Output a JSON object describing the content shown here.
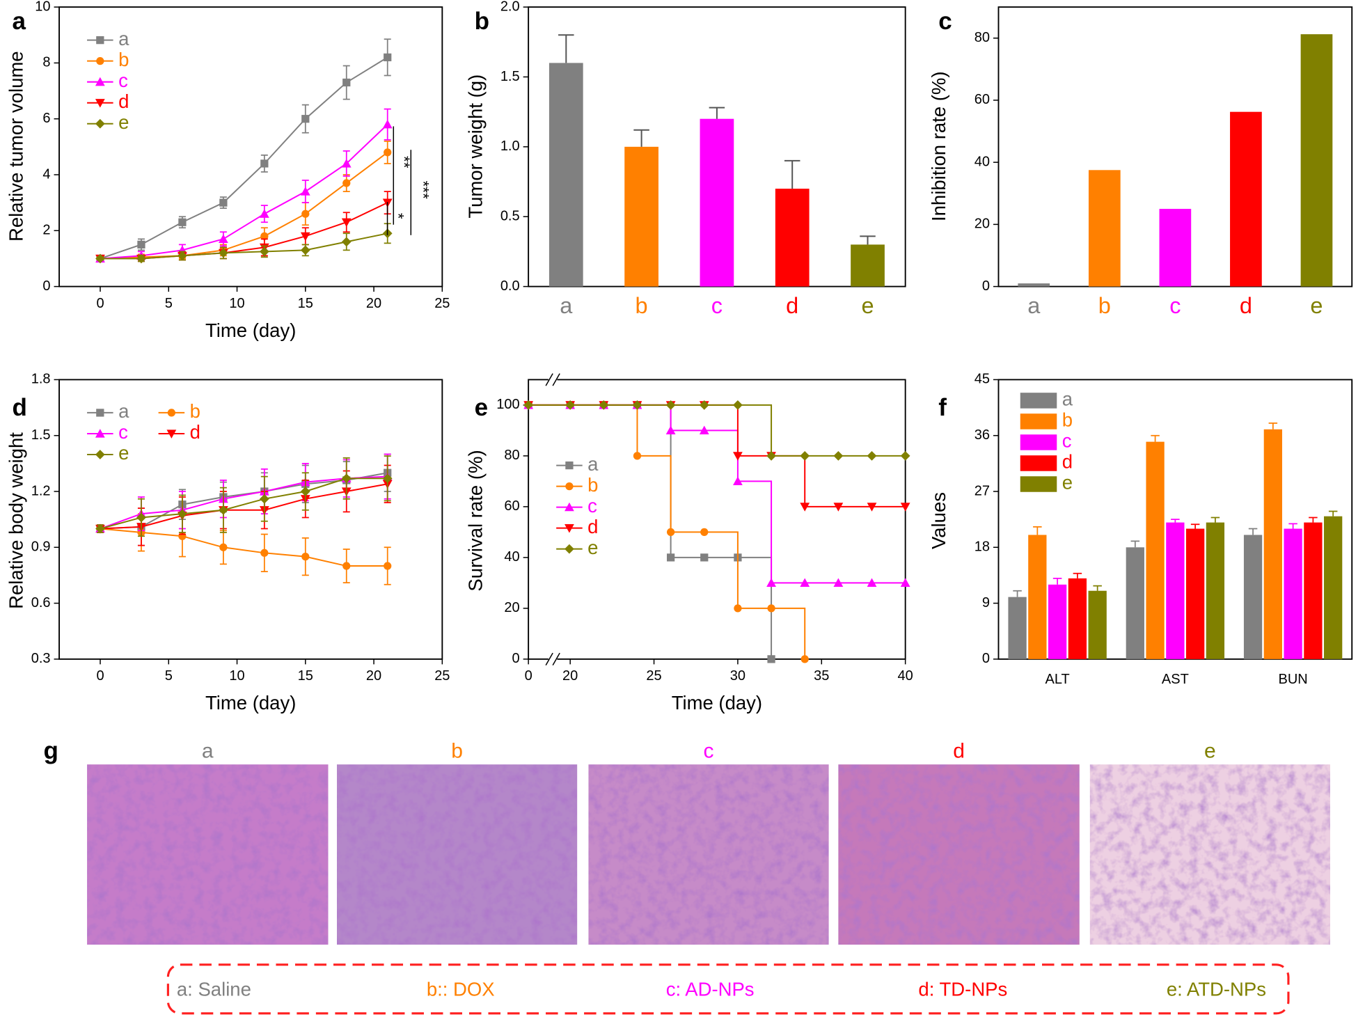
{
  "chart_data": [
    {
      "type": "line",
      "panel_label": "a",
      "x_label": "Time (day)",
      "y_label": "Relative tumor volume",
      "x": [
        0,
        3,
        6,
        9,
        12,
        15,
        18,
        21
      ],
      "xlim": [
        -3,
        25
      ],
      "xticks": [
        0,
        5,
        10,
        15,
        20,
        25
      ],
      "ylim": [
        0,
        10
      ],
      "yticks": [
        0,
        2,
        4,
        6,
        8,
        10
      ],
      "legend": "upper left",
      "series": [
        {
          "name": "a",
          "color": "#808080",
          "marker": "square",
          "values": [
            1,
            1.5,
            2.3,
            3,
            4.4,
            6,
            7.3,
            8.2
          ],
          "errors": [
            0.05,
            0.2,
            0.2,
            0.2,
            0.3,
            0.5,
            0.6,
            0.65
          ]
        },
        {
          "name": "b",
          "color": "#ff8000",
          "marker": "circle",
          "values": [
            1,
            1.05,
            1.1,
            1.3,
            1.8,
            2.6,
            3.7,
            4.8
          ],
          "errors": [
            0.05,
            0.1,
            0.1,
            0.2,
            0.3,
            0.4,
            0.3,
            0.4
          ]
        },
        {
          "name": "c",
          "color": "#ff00ff",
          "marker": "triangle-up",
          "values": [
            1,
            1.1,
            1.3,
            1.7,
            2.6,
            3.4,
            4.4,
            5.8
          ],
          "errors": [
            0.05,
            0.15,
            0.2,
            0.25,
            0.3,
            0.4,
            0.45,
            0.55
          ]
        },
        {
          "name": "d",
          "color": "#ff0000",
          "marker": "triangle-down",
          "values": [
            1,
            1,
            1.1,
            1.2,
            1.4,
            1.8,
            2.3,
            3
          ],
          "errors": [
            0.05,
            0.1,
            0.15,
            0.2,
            0.3,
            0.3,
            0.35,
            0.4
          ]
        },
        {
          "name": "e",
          "color": "#808000",
          "marker": "diamond",
          "values": [
            1,
            1,
            1.1,
            1.2,
            1.25,
            1.3,
            1.6,
            1.9
          ],
          "errors": [
            0.05,
            0.1,
            0.15,
            0.2,
            0.2,
            0.2,
            0.3,
            0.35
          ]
        }
      ],
      "annotations": [
        "**",
        "***",
        "*"
      ]
    },
    {
      "type": "bar",
      "panel_label": "b",
      "y_label": "Tumor weight (g)",
      "categories": [
        "a",
        "b",
        "c",
        "d",
        "e"
      ],
      "values": [
        1.6,
        1,
        1.2,
        0.7,
        0.3
      ],
      "errors": [
        0.2,
        0.12,
        0.08,
        0.2,
        0.06
      ],
      "colors": [
        "#808080",
        "#ff8000",
        "#ff00ff",
        "#ff0000",
        "#808000"
      ],
      "ylim": [
        0,
        2
      ],
      "yticks": [
        {
          "value": 0,
          "label": "0.0"
        },
        0.5,
        {
          "value": 1,
          "label": "1.0"
        },
        1.5,
        {
          "value": 2,
          "label": "2.0"
        }
      ]
    },
    {
      "type": "bar",
      "panel_label": "c",
      "y_label": "Inhibition rate (%)",
      "categories": [
        "a",
        "b",
        "c",
        "d",
        "e"
      ],
      "values": [
        1,
        37.5,
        25,
        56.25,
        81.25
      ],
      "colors": [
        "#808080",
        "#ff8000",
        "#ff00ff",
        "#ff0000",
        "#808000"
      ],
      "ylim": [
        0,
        90
      ],
      "yticks": [
        0,
        20,
        40,
        60,
        80
      ]
    },
    {
      "type": "line",
      "panel_label": "d",
      "x_label": "Time (day)",
      "y_label": "Relative body weight",
      "x": [
        0,
        3,
        6,
        9,
        12,
        15,
        18,
        21
      ],
      "xlim": [
        -3,
        25
      ],
      "xticks": [
        0,
        5,
        10,
        15,
        20,
        25
      ],
      "ylim": [
        0.3,
        1.8
      ],
      "yticks": [
        0.3,
        0.6,
        0.9,
        1.2,
        1.5,
        1.8
      ],
      "legend": "upper left",
      "legend_columns": 2,
      "series": [
        {
          "name": "a",
          "color": "#808080",
          "marker": "square",
          "values": [
            1,
            1.01,
            1.13,
            1.17,
            1.2,
            1.24,
            1.26,
            1.3
          ],
          "errors": [
            0.02,
            0.1,
            0.08,
            0.08,
            0.1,
            0.1,
            0.1,
            0.1
          ]
        },
        {
          "name": "b",
          "color": "#ff8000",
          "marker": "circle",
          "values": [
            1,
            0.98,
            0.96,
            0.9,
            0.87,
            0.85,
            0.8,
            0.8
          ],
          "errors": [
            0.02,
            0.1,
            0.11,
            0.09,
            0.1,
            0.1,
            0.09,
            0.1
          ]
        },
        {
          "name": "c",
          "color": "#ff00ff",
          "marker": "triangle-up",
          "values": [
            1,
            1.08,
            1.1,
            1.16,
            1.2,
            1.25,
            1.27,
            1.28
          ],
          "errors": [
            0.02,
            0.09,
            0.1,
            0.1,
            0.12,
            0.1,
            0.1,
            0.12
          ]
        },
        {
          "name": "d",
          "color": "#ff0000",
          "marker": "triangle-down",
          "values": [
            1,
            1.01,
            1.07,
            1.1,
            1.1,
            1.16,
            1.2,
            1.24
          ],
          "errors": [
            0.02,
            0.1,
            0.1,
            0.1,
            0.1,
            0.1,
            0.11,
            0.1
          ]
        },
        {
          "name": "e",
          "color": "#808000",
          "marker": "diamond",
          "values": [
            1,
            1.06,
            1.08,
            1.1,
            1.16,
            1.2,
            1.27,
            1.27
          ],
          "errors": [
            0.02,
            0.1,
            0.1,
            0.12,
            0.12,
            0.1,
            0.11,
            0.12
          ]
        }
      ]
    },
    {
      "type": "step",
      "panel_label": "e",
      "x_label": "Time (day)",
      "y_label": "Survival rate (%)",
      "x": [
        0,
        20,
        22,
        24,
        26,
        28,
        30,
        32,
        34,
        36,
        38,
        40
      ],
      "xlim": [
        0,
        40
      ],
      "xbreak": [
        0,
        20
      ],
      "xticks": [
        0,
        20,
        25,
        30,
        35,
        40
      ],
      "ylim": [
        0,
        110
      ],
      "yticks": [
        0,
        20,
        40,
        60,
        80,
        100
      ],
      "legend": "center left",
      "series": [
        {
          "name": "a",
          "color": "#808080",
          "marker": "square",
          "values": [
            100,
            100,
            100,
            100,
            40,
            40,
            40,
            0,
            null,
            null,
            null,
            null
          ]
        },
        {
          "name": "b",
          "color": "#ff8000",
          "marker": "circle",
          "values": [
            100,
            100,
            100,
            80,
            50,
            50,
            20,
            20,
            0,
            null,
            null,
            null
          ]
        },
        {
          "name": "c",
          "color": "#ff00ff",
          "marker": "triangle-up",
          "values": [
            100,
            100,
            100,
            100,
            90,
            90,
            70,
            30,
            30,
            30,
            30,
            30
          ]
        },
        {
          "name": "d",
          "color": "#ff0000",
          "marker": "triangle-down",
          "values": [
            100,
            100,
            100,
            100,
            100,
            100,
            80,
            80,
            60,
            60,
            60,
            60
          ]
        },
        {
          "name": "e",
          "color": "#808000",
          "marker": "diamond",
          "values": [
            100,
            100,
            100,
            100,
            100,
            100,
            100,
            80,
            80,
            80,
            80,
            80
          ]
        }
      ]
    },
    {
      "type": "grouped_bar",
      "panel_label": "f",
      "y_label": "Values",
      "categories": [
        "ALT",
        "AST",
        "BUN"
      ],
      "ylim": [
        0,
        45
      ],
      "yticks": [
        0,
        9,
        18,
        27,
        36,
        45
      ],
      "legend": "upper left",
      "series": [
        {
          "name": "a",
          "color": "#808080",
          "values": [
            10,
            18,
            20
          ],
          "errors": [
            1,
            1,
            1
          ]
        },
        {
          "name": "b",
          "color": "#ff8000",
          "values": [
            20,
            35,
            37
          ],
          "errors": [
            1.3,
            1,
            1
          ]
        },
        {
          "name": "c",
          "color": "#ff00ff",
          "values": [
            12,
            22,
            21
          ],
          "errors": [
            1,
            0.5,
            0.8
          ]
        },
        {
          "name": "d",
          "color": "#ff0000",
          "values": [
            13,
            21,
            22
          ],
          "errors": [
            0.8,
            0.7,
            0.8
          ]
        },
        {
          "name": "e",
          "color": "#808000",
          "values": [
            11,
            22,
            23
          ],
          "errors": [
            0.8,
            0.8,
            0.8
          ]
        }
      ]
    }
  ],
  "figure_g": {
    "panel_label": "g",
    "labels": [
      "a",
      "b",
      "c",
      "d",
      "e"
    ],
    "colors": [
      "#808080",
      "#ff8000",
      "#ff00ff",
      "#ff0000",
      "#808000"
    ],
    "legend": [
      "a: Saline",
      "b:: DOX",
      "c: AD-NPs",
      "d: TD-NPs",
      "e: ATD-NPs"
    ]
  }
}
